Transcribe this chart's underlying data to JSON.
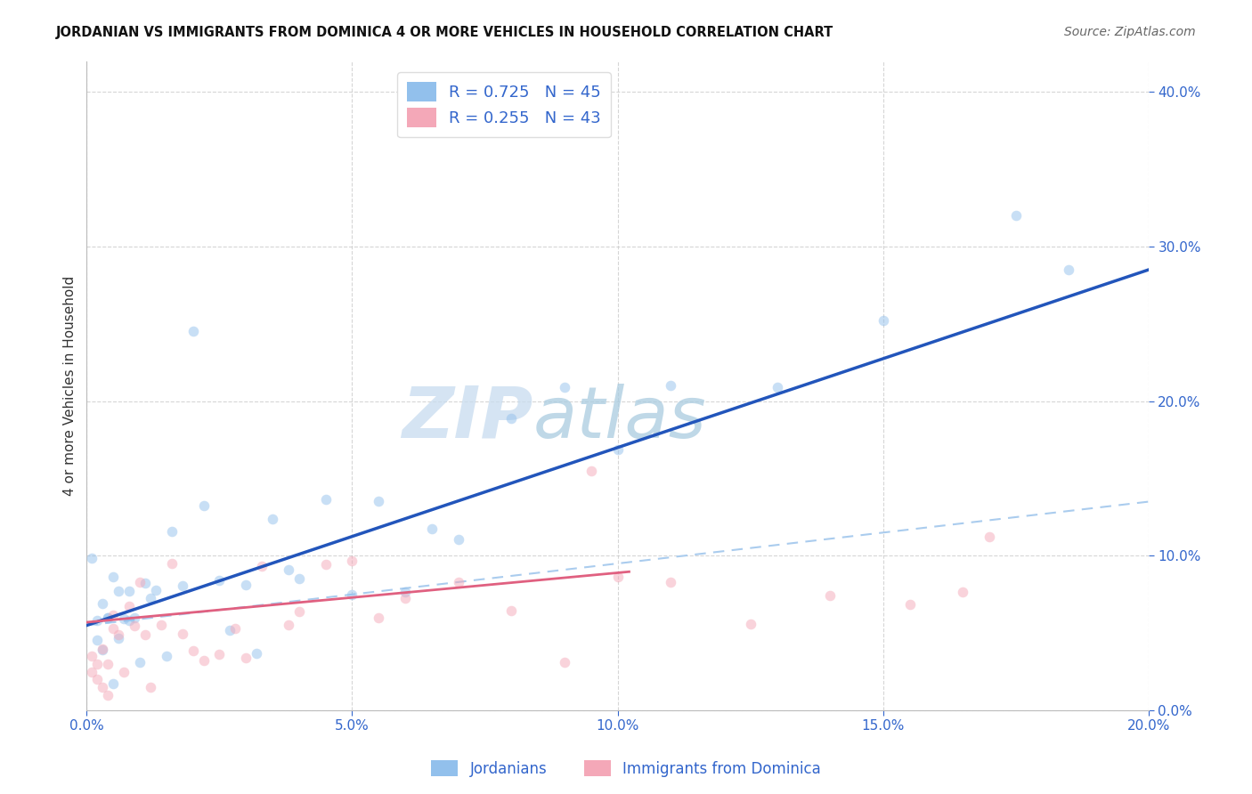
{
  "title": "JORDANIAN VS IMMIGRANTS FROM DOMINICA 4 OR MORE VEHICLES IN HOUSEHOLD CORRELATION CHART",
  "source": "Source: ZipAtlas.com",
  "ylabel": "4 or more Vehicles in Household",
  "xlabel_jordanians": "Jordanians",
  "xlabel_dominica": "Immigrants from Dominica",
  "watermark_zip": "ZIP",
  "watermark_atlas": "atlas",
  "legend_r1": "R = 0.725",
  "legend_n1": "N = 45",
  "legend_r2": "R = 0.255",
  "legend_n2": "N = 43",
  "xmin": 0.0,
  "xmax": 0.2,
  "ymin": 0.0,
  "ymax": 0.42,
  "xticks": [
    0.0,
    0.05,
    0.1,
    0.15,
    0.2
  ],
  "yticks": [
    0.0,
    0.1,
    0.2,
    0.3,
    0.4
  ],
  "color_jordanian": "#92C0EC",
  "color_dominica": "#F4A8B8",
  "line_color_jordanian": "#2255BB",
  "line_color_dominica": "#E06080",
  "line_dashed_color": "#AACCEE",
  "background_color": "#FFFFFF",
  "scatter_alpha": 0.5,
  "scatter_size": 70,
  "title_fontsize": 10.5,
  "source_fontsize": 10,
  "tick_fontsize": 11,
  "ylabel_fontsize": 11
}
